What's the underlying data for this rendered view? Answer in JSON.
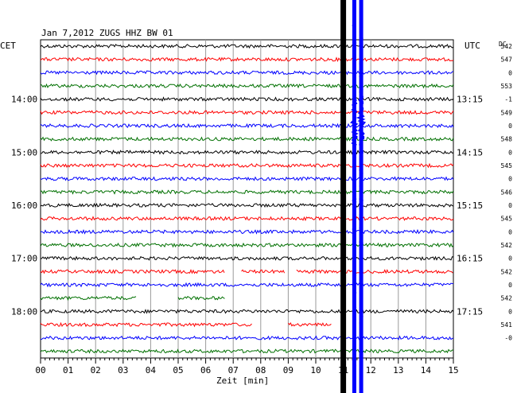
{
  "chart_data": {
    "type": "line",
    "title": "Jan 7,2012   ZUGS HHZ BW 01",
    "left_zone_label": "CET",
    "right_zone_label": "UTC",
    "dc_header": "DC",
    "xlabel": "Zeit [min]",
    "xlim": [
      0,
      15
    ],
    "x_ticks": [
      "00",
      "01",
      "02",
      "03",
      "04",
      "05",
      "06",
      "07",
      "08",
      "09",
      "10",
      "11",
      "12",
      "13",
      "14",
      "15"
    ],
    "left_hour_labels": [
      {
        "trace": 4,
        "text": "14:00"
      },
      {
        "trace": 8,
        "text": "15:00"
      },
      {
        "trace": 12,
        "text": "16:00"
      },
      {
        "trace": 16,
        "text": "17:00"
      },
      {
        "trace": 20,
        "text": "18:00"
      }
    ],
    "right_hour_labels": [
      {
        "trace": 4,
        "text": "13:15"
      },
      {
        "trace": 8,
        "text": "14:15"
      },
      {
        "trace": 12,
        "text": "15:15"
      },
      {
        "trace": 16,
        "text": "16:15"
      },
      {
        "trace": 20,
        "text": "17:15"
      }
    ],
    "dc_offsets": [
      "542",
      "547",
      "0",
      "553",
      "-1",
      "549",
      "0",
      "548",
      "0",
      "545",
      "0",
      "546",
      "0",
      "545",
      "0",
      "542",
      "0",
      "542",
      "0",
      "542",
      "0",
      "541",
      "-0"
    ],
    "trace_colors": [
      "#000000",
      "#ff0000",
      "#0000ff",
      "#007000"
    ],
    "trace_count": 24,
    "minutes_per_trace": 15,
    "data_gaps": [
      {
        "trace": 17,
        "from_min": 6.7,
        "to_min": 7.3
      },
      {
        "trace": 17,
        "from_min": 8.9,
        "to_min": 9.3
      },
      {
        "trace": 19,
        "from_min": 3.5,
        "to_min": 5.0
      },
      {
        "trace": 19,
        "from_min": 6.7,
        "to_min": 15.0
      },
      {
        "trace": 21,
        "from_min": 7.7,
        "to_min": 9.0
      },
      {
        "trace": 21,
        "from_min": 10.6,
        "to_min": 15.0
      }
    ],
    "events": [
      {
        "minute": 11.0,
        "color": "#000000",
        "label": "saturated vertical band"
      },
      {
        "minute": 11.4,
        "color": "#0000ff",
        "label": "earthquake arrival"
      },
      {
        "minute": 11.65,
        "color": "#0000ff",
        "label": "earthquake arrival"
      }
    ]
  }
}
